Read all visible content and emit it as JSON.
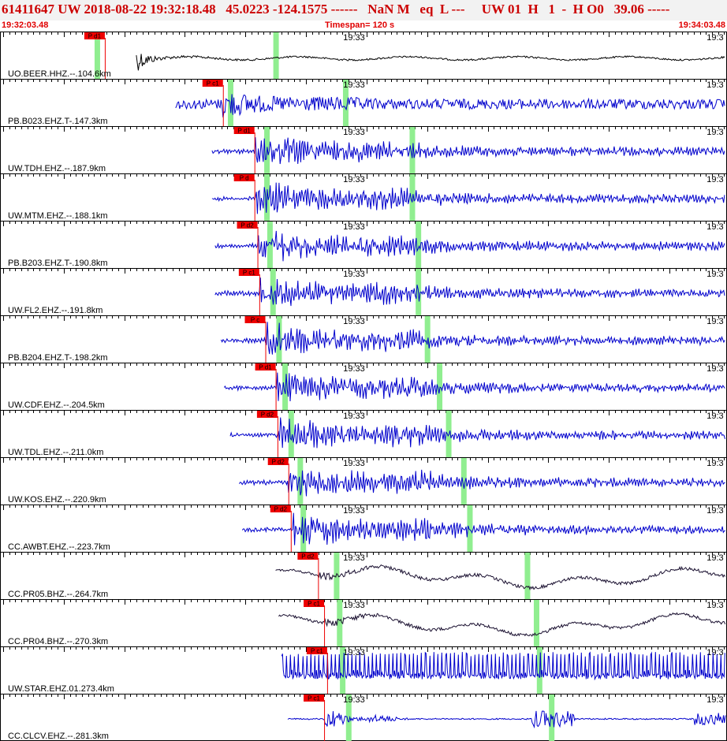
{
  "header": {
    "event_line": "61411647 UW 2018-08-22 19:32:18.48   45.0223 -124.1575 ------   NaN M   eq  L ---     UW 01  H   1  -  H O0   39.06 -----",
    "start_time": "19:32:03.48",
    "timespan": "Timespan= 120 s",
    "end_time": "19:34:03.48"
  },
  "colors": {
    "seismic_blue": "#0000cc",
    "broadband_dark": "#1a1030",
    "first_trace": "#000000",
    "pick_red": "#ee0000",
    "marker_green": "#90ee90",
    "header_red": "#cc0000"
  },
  "chart_data": {
    "type": "line",
    "title": "",
    "x_unit": "seconds from 19:32:03.48",
    "xlim": [
      0,
      120
    ],
    "minute_marks": [
      {
        "time": 56.52,
        "label": "19:33"
      },
      {
        "time": 116.52,
        "label": "19:3"
      }
    ],
    "traces": [
      {
        "label": "UO.BEER.HHZ.--.104.6km",
        "distance_km": 104.6,
        "color": "broadband_dark",
        "pick_label": "P d1",
        "start": 22.5,
        "pick": 17.3,
        "green": [
          16.0,
          45.5
        ],
        "style": "burst"
      },
      {
        "label": "PB.B023.EHZ.T-.147.3km",
        "distance_km": 147.3,
        "color": "seismic_blue",
        "pick_label": "P c1",
        "start": 29.0,
        "pick": 36.8,
        "green": [
          38.0,
          57.0
        ],
        "style": "noisy"
      },
      {
        "label": "UW.TDH.EHZ.--.187.9km",
        "distance_km": 187.9,
        "color": "seismic_blue",
        "pick_label": "P d1",
        "start": 35.0,
        "pick": 42.0,
        "green": [
          44.0,
          68.0
        ],
        "style": "quake"
      },
      {
        "label": "UW.MTM.EHZ.--.188.1km",
        "distance_km": 188.1,
        "color": "seismic_blue",
        "pick_label": "P d",
        "start": 35.0,
        "pick": 42.0,
        "green": [
          44.0,
          68.0
        ],
        "style": "quake"
      },
      {
        "label": "PB.B203.EHZ.T-.190.8km",
        "distance_km": 190.8,
        "color": "seismic_blue",
        "pick_label": "P d2",
        "start": 35.5,
        "pick": 42.5,
        "green": [
          44.5,
          69.0
        ],
        "style": "quake"
      },
      {
        "label": "UW.FL2.EHZ.--.191.8km",
        "distance_km": 191.8,
        "color": "seismic_blue",
        "pick_label": "P c1",
        "start": 35.5,
        "pick": 42.8,
        "green": [
          45.0,
          69.0
        ],
        "style": "quake"
      },
      {
        "label": "PB.B204.EHZ.T-.198.2km",
        "distance_km": 198.2,
        "color": "seismic_blue",
        "pick_label": "P c",
        "start": 36.5,
        "pick": 43.8,
        "green": [
          46.0,
          70.5
        ],
        "style": "quake"
      },
      {
        "label": "UW.CDF.EHZ.--.204.5km",
        "distance_km": 204.5,
        "color": "seismic_blue",
        "pick_label": "P d1",
        "start": 37.0,
        "pick": 45.5,
        "green": [
          47.0,
          72.5
        ],
        "style": "quake"
      },
      {
        "label": "UW.TDL.EHZ.--.211.0km",
        "distance_km": 211.0,
        "color": "seismic_blue",
        "pick_label": "P d2",
        "start": 38.0,
        "pick": 45.8,
        "green": [
          48.0,
          74.0
        ],
        "style": "quake"
      },
      {
        "label": "UW.KOS.EHZ.--.220.9km",
        "distance_km": 220.9,
        "color": "seismic_blue",
        "pick_label": "P d2",
        "start": 39.5,
        "pick": 47.6,
        "green": [
          49.5,
          76.5
        ],
        "style": "quake"
      },
      {
        "label": "CC.AWBT.EHZ.--.223.7km",
        "distance_km": 223.7,
        "color": "seismic_blue",
        "pick_label": "P d2",
        "start": 40.0,
        "pick": 48.0,
        "green": [
          50.0,
          77.5
        ],
        "style": "quake"
      },
      {
        "label": "CC.PR05.BHZ.--.264.7km",
        "distance_km": 264.7,
        "color": "broadband_dark",
        "pick_label": "P d2",
        "start": 45.5,
        "pick": 52.5,
        "green": [
          55.5,
          87.0
        ],
        "style": "broadband"
      },
      {
        "label": "CC.PR04.BHZ.--.270.3km",
        "distance_km": 270.3,
        "color": "broadband_dark",
        "pick_label": "P c1",
        "start": 46.0,
        "pick": 53.5,
        "green": [
          56.0,
          88.5
        ],
        "style": "broadband"
      },
      {
        "label": "UW.STAR.EHZ.01.273.4km",
        "distance_km": 273.4,
        "color": "seismic_blue",
        "pick_label": "P c1",
        "start": 46.5,
        "pick": 54.0,
        "green": [
          56.5,
          89.0
        ],
        "style": "spiky"
      },
      {
        "label": "CC.CLCV.EHZ.--.281.3km",
        "distance_km": 281.3,
        "color": "seismic_blue",
        "pick_label": "P c1",
        "start": 47.5,
        "pick": 53.5,
        "green": [
          57.5,
          91.0
        ],
        "style": "sparse"
      }
    ]
  }
}
